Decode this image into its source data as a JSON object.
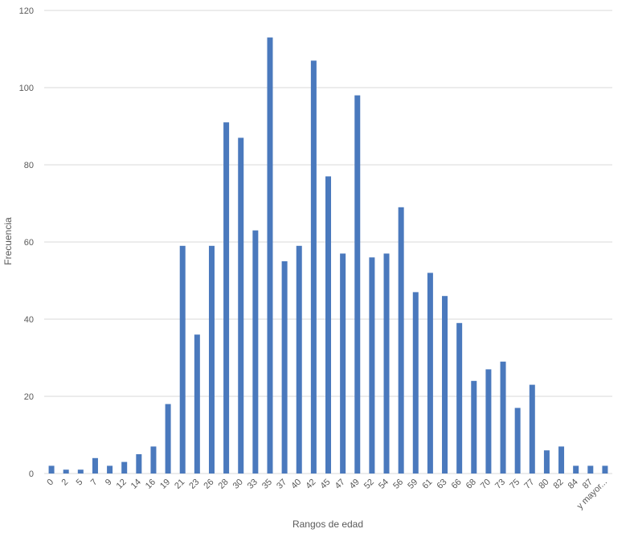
{
  "chart_data": {
    "type": "bar",
    "title": "",
    "xlabel": "Rangos de edad",
    "ylabel": "Frecuencia",
    "ylim": [
      0,
      120
    ],
    "yticks": [
      0,
      20,
      40,
      60,
      80,
      100,
      120
    ],
    "grid": true,
    "legend": "none",
    "bar_color": "#4a79bd",
    "categories": [
      "0",
      "2",
      "5",
      "7",
      "9",
      "12",
      "14",
      "16",
      "19",
      "21",
      "23",
      "26",
      "28",
      "30",
      "33",
      "35",
      "37",
      "40",
      "42",
      "45",
      "47",
      "49",
      "52",
      "54",
      "56",
      "59",
      "61",
      "63",
      "66",
      "68",
      "70",
      "73",
      "75",
      "77",
      "80",
      "82",
      "84",
      "87",
      "y mayor..."
    ],
    "values": [
      2,
      1,
      1,
      4,
      2,
      3,
      5,
      7,
      18,
      59,
      36,
      59,
      91,
      87,
      63,
      113,
      55,
      59,
      107,
      77,
      57,
      98,
      56,
      57,
      69,
      47,
      52,
      46,
      39,
      24,
      27,
      29,
      17,
      23,
      6,
      7,
      2,
      2,
      2
    ]
  }
}
